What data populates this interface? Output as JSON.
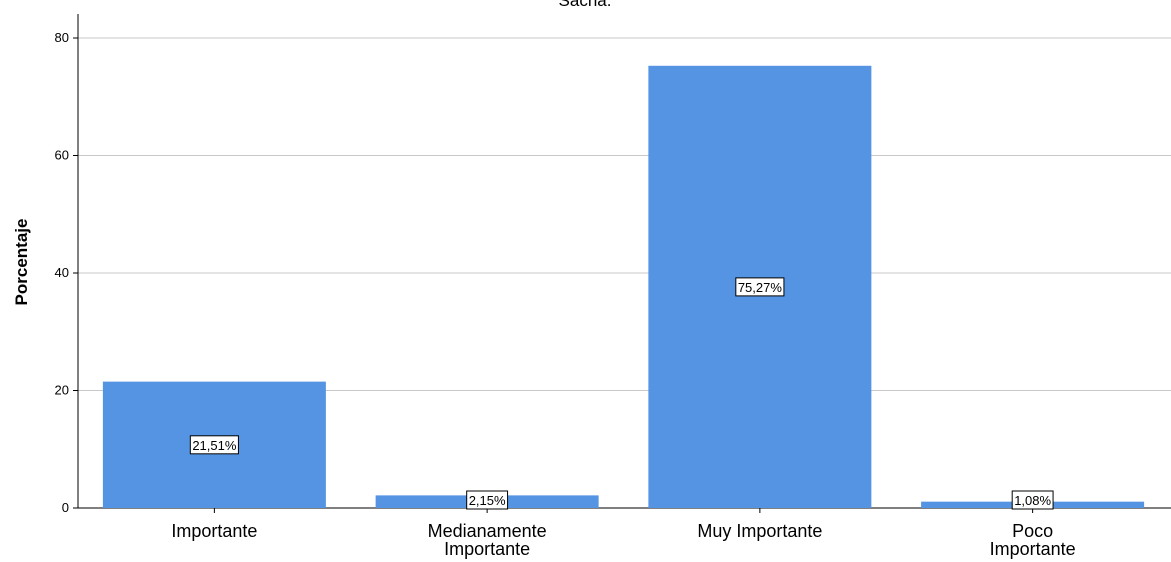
{
  "chart_data": {
    "type": "bar",
    "title": "Sacha.",
    "xlabel": "",
    "ylabel": "Porcentaje",
    "ylim": [
      0,
      80
    ],
    "yticks": [
      0,
      20,
      40,
      60,
      80
    ],
    "grid": true,
    "categories": [
      "Importante",
      "Medianamente Importante",
      "Muy Importante",
      "Poco Importante"
    ],
    "values": [
      21.51,
      2.15,
      75.27,
      1.08
    ],
    "data_labels": [
      "21,51%",
      "2,15%",
      "75,27%",
      "1,08%"
    ],
    "bar_color": "#5594e3"
  }
}
